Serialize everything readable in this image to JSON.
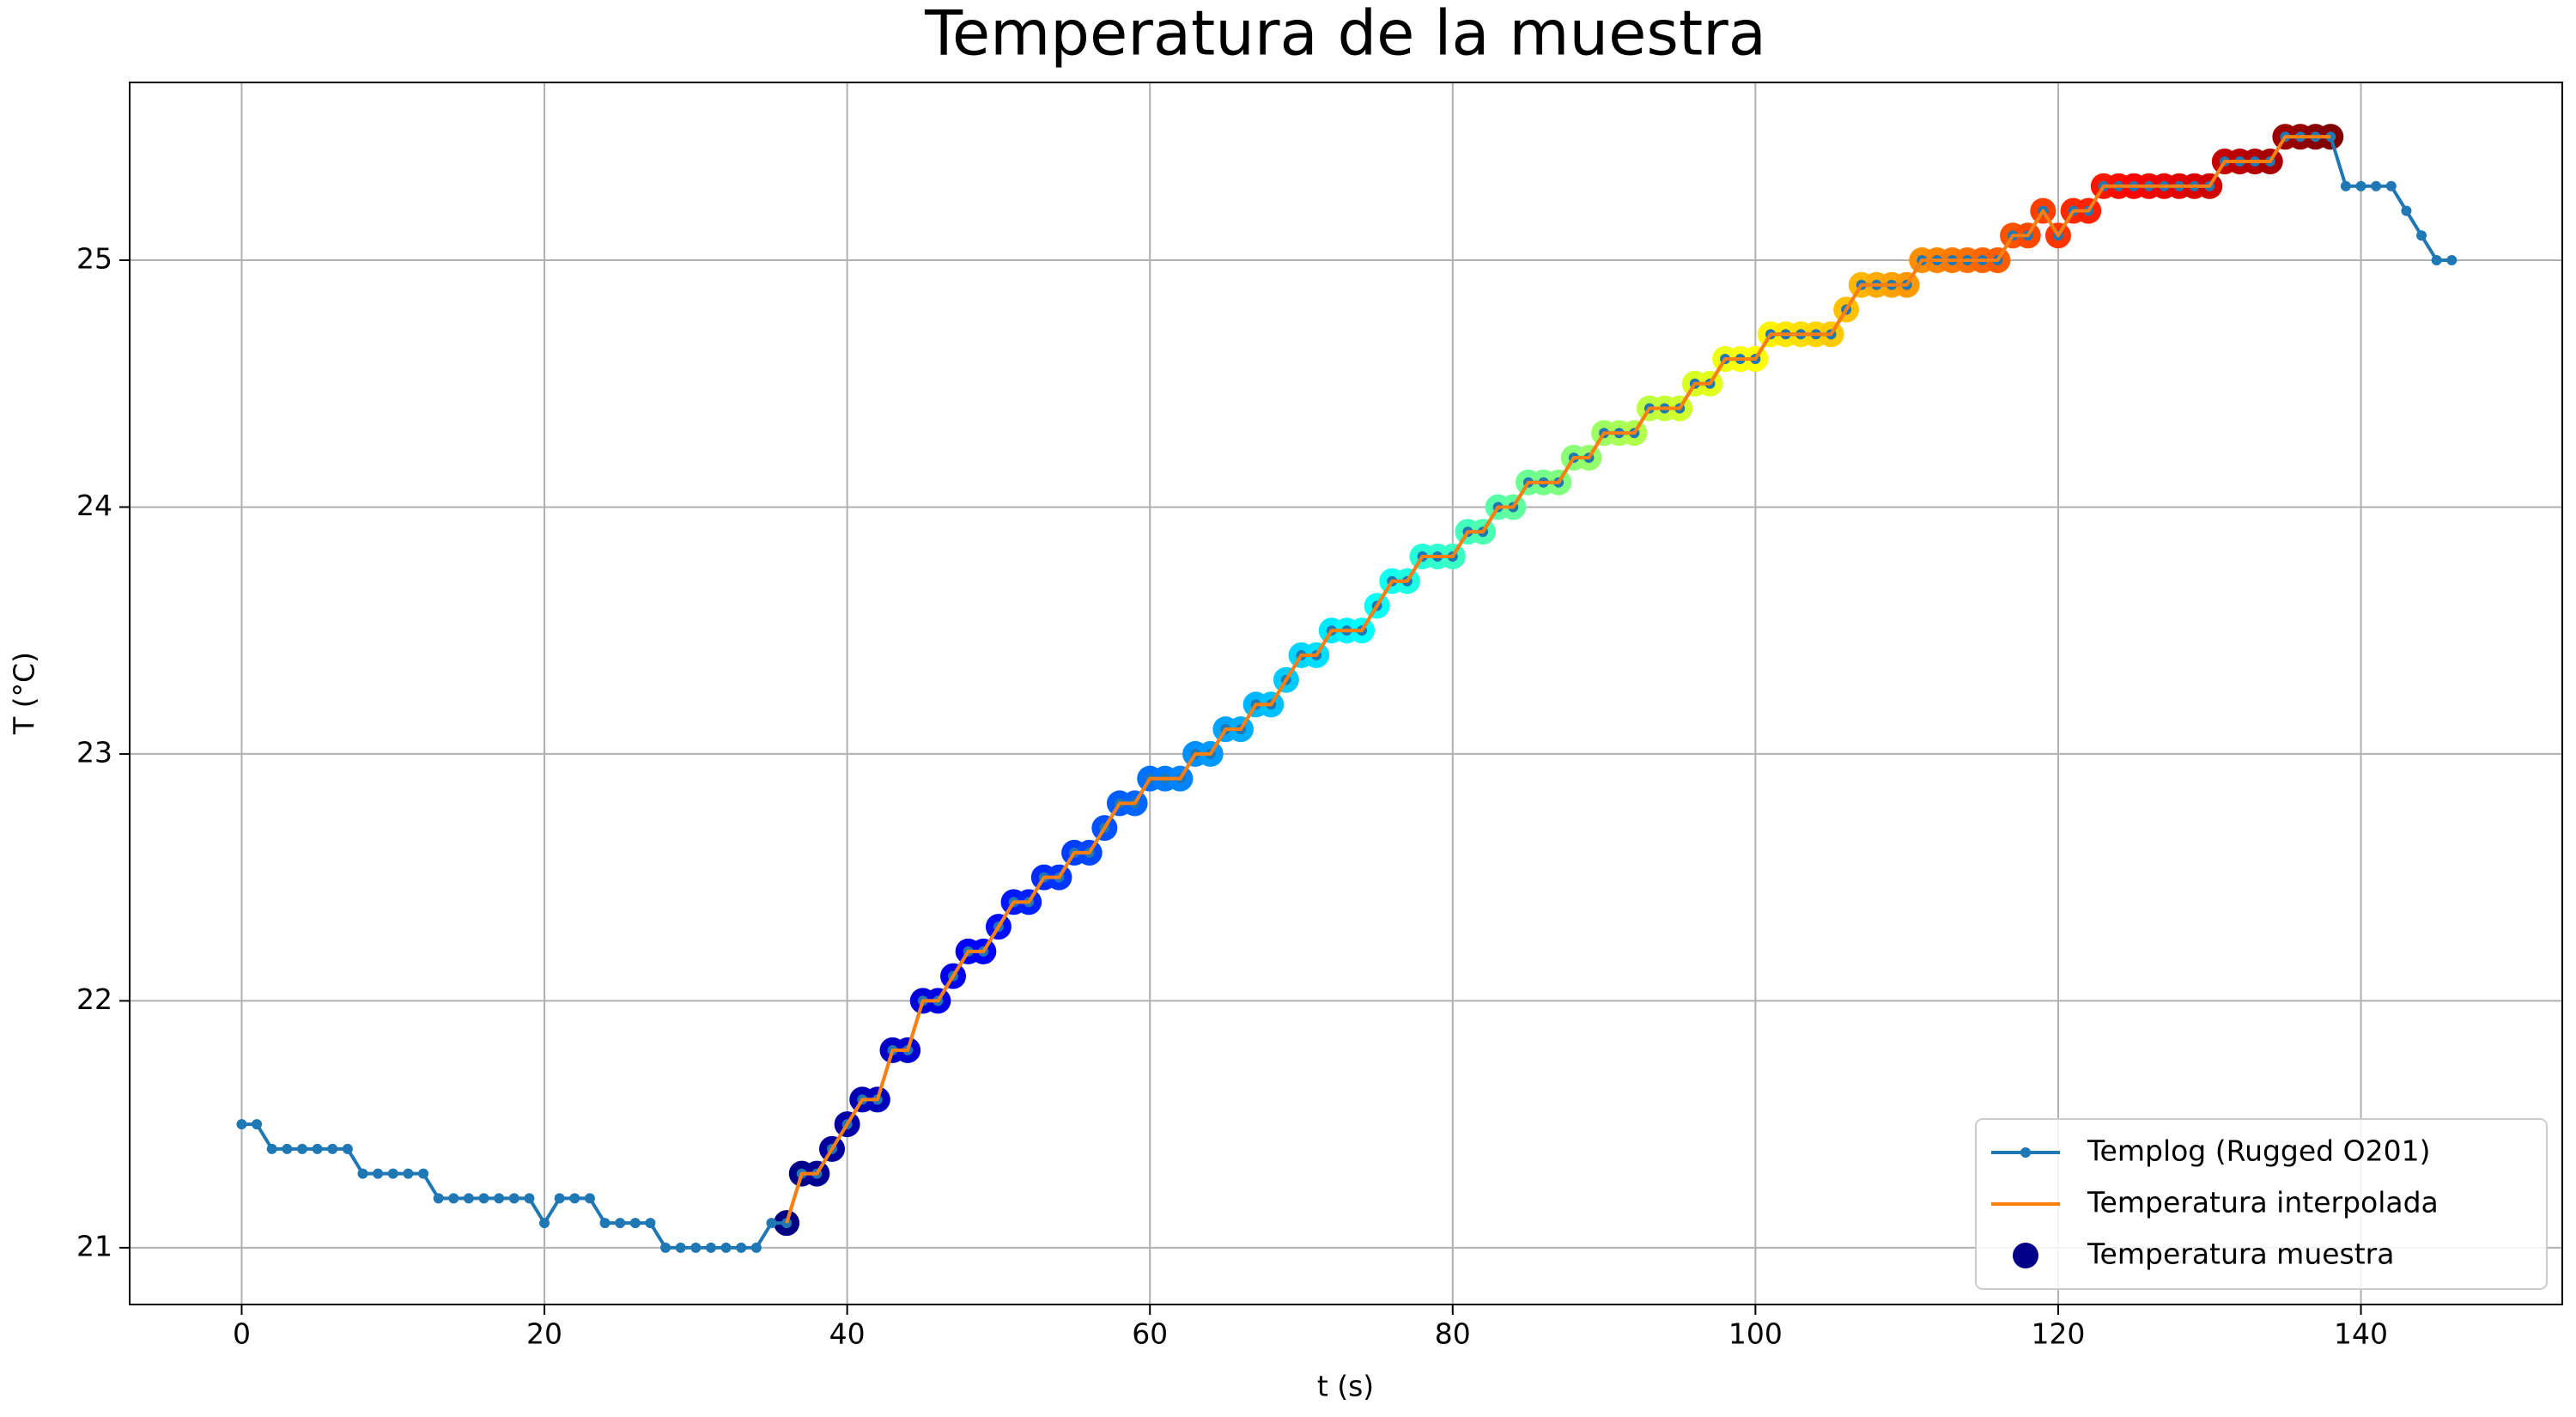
{
  "chart_data": {
    "type": "line",
    "title": "Temperatura de la muestra",
    "x_label": "t (s)",
    "y_label": "T (°C)",
    "xlim": [
      -7.4,
      153.3
    ],
    "ylim": [
      20.77,
      25.72
    ],
    "xticks": [
      0,
      20,
      40,
      60,
      80,
      100,
      120,
      140
    ],
    "yticks": [
      21,
      22,
      23,
      24,
      25
    ],
    "grid": true,
    "legend": "lower right",
    "series": [
      {
        "name": "Templog (Rugged O201)",
        "type": "line",
        "color": "#1f77b4",
        "marker": true,
        "x": [
          0,
          1,
          2,
          3,
          4,
          5,
          6,
          7,
          8,
          9,
          10,
          11,
          12,
          13,
          14,
          15,
          16,
          17,
          18,
          19,
          20,
          21,
          22,
          23,
          24,
          25,
          26,
          27,
          28,
          29,
          30,
          31,
          32,
          33,
          34,
          35,
          36,
          37,
          38,
          39,
          40,
          41,
          42,
          43,
          44,
          45,
          46,
          47,
          48,
          49,
          50,
          51,
          52,
          53,
          54,
          55,
          56,
          57,
          58,
          59,
          60,
          61,
          62,
          63,
          64,
          65,
          66,
          67,
          68,
          69,
          70,
          71,
          72,
          73,
          74,
          75,
          76,
          77,
          78,
          79,
          80,
          81,
          82,
          83,
          84,
          85,
          86,
          87,
          88,
          89,
          90,
          91,
          92,
          93,
          94,
          95,
          96,
          97,
          98,
          99,
          100,
          101,
          102,
          103,
          104,
          105,
          106,
          107,
          108,
          109,
          110,
          111,
          112,
          113,
          114,
          115,
          116,
          117,
          118,
          119,
          120,
          121,
          122,
          123,
          124,
          125,
          126,
          127,
          128,
          129,
          130,
          131,
          132,
          133,
          134,
          135,
          136,
          137,
          138,
          139,
          140,
          141,
          142,
          143,
          144,
          145,
          146
        ],
        "values": [
          21.5,
          21.5,
          21.4,
          21.4,
          21.4,
          21.4,
          21.4,
          21.4,
          21.3,
          21.3,
          21.3,
          21.3,
          21.3,
          21.2,
          21.2,
          21.2,
          21.2,
          21.2,
          21.2,
          21.2,
          21.1,
          21.2,
          21.2,
          21.2,
          21.1,
          21.1,
          21.1,
          21.1,
          21.0,
          21.0,
          21.0,
          21.0,
          21.0,
          21.0,
          21.0,
          21.1,
          21.1,
          21.3,
          21.3,
          21.4,
          21.5,
          21.6,
          21.6,
          21.8,
          21.8,
          22.0,
          22.0,
          22.1,
          22.2,
          22.2,
          22.3,
          22.4,
          22.4,
          22.5,
          22.5,
          22.6,
          22.6,
          22.7,
          22.8,
          22.8,
          22.9,
          22.9,
          22.9,
          23.0,
          23.0,
          23.1,
          23.1,
          23.2,
          23.2,
          23.3,
          23.4,
          23.4,
          23.5,
          23.5,
          23.5,
          23.6,
          23.7,
          23.7,
          23.8,
          23.8,
          23.8,
          23.9,
          23.9,
          24.0,
          24.0,
          24.1,
          24.1,
          24.1,
          24.2,
          24.2,
          24.3,
          24.3,
          24.3,
          24.4,
          24.4,
          24.4,
          24.5,
          24.5,
          24.6,
          24.6,
          24.6,
          24.7,
          24.7,
          24.7,
          24.7,
          24.7,
          24.8,
          24.9,
          24.9,
          24.9,
          24.9,
          25.0,
          25.0,
          25.0,
          25.0,
          25.0,
          25.0,
          25.1,
          25.1,
          25.2,
          25.1,
          25.2,
          25.2,
          25.3,
          25.3,
          25.3,
          25.3,
          25.3,
          25.3,
          25.3,
          25.3,
          25.4,
          25.4,
          25.4,
          25.4,
          25.5,
          25.5,
          25.5,
          25.5,
          25.3,
          25.3,
          25.3,
          25.3,
          25.2,
          25.1,
          25.0,
          25.0
        ]
      },
      {
        "name": "Temperatura interpolada",
        "type": "line",
        "color": "#ff7f0e",
        "marker": false,
        "x": [
          36,
          37,
          38,
          39,
          40,
          41,
          42,
          43,
          44,
          45,
          46,
          47,
          48,
          49,
          50,
          51,
          52,
          53,
          54,
          55,
          56,
          57,
          58,
          59,
          60,
          61,
          62,
          63,
          64,
          65,
          66,
          67,
          68,
          69,
          70,
          71,
          72,
          73,
          74,
          75,
          76,
          77,
          78,
          79,
          80,
          81,
          82,
          83,
          84,
          85,
          86,
          87,
          88,
          89,
          90,
          91,
          92,
          93,
          94,
          95,
          96,
          97,
          98,
          99,
          100,
          101,
          102,
          103,
          104,
          105,
          106,
          107,
          108,
          109,
          110,
          111,
          112,
          113,
          114,
          115,
          116,
          117,
          118,
          119,
          120,
          121,
          122,
          123,
          124,
          125,
          126,
          127,
          128,
          129,
          130,
          131,
          132,
          133,
          134,
          135,
          136,
          137,
          138
        ],
        "values": [
          21.1,
          21.3,
          21.3,
          21.4,
          21.5,
          21.6,
          21.6,
          21.8,
          21.8,
          22.0,
          22.0,
          22.1,
          22.2,
          22.2,
          22.3,
          22.4,
          22.4,
          22.5,
          22.5,
          22.6,
          22.6,
          22.7,
          22.8,
          22.8,
          22.9,
          22.9,
          22.9,
          23.0,
          23.0,
          23.1,
          23.1,
          23.2,
          23.2,
          23.3,
          23.4,
          23.4,
          23.5,
          23.5,
          23.5,
          23.6,
          23.7,
          23.7,
          23.8,
          23.8,
          23.8,
          23.9,
          23.9,
          24.0,
          24.0,
          24.1,
          24.1,
          24.1,
          24.2,
          24.2,
          24.3,
          24.3,
          24.3,
          24.4,
          24.4,
          24.4,
          24.5,
          24.5,
          24.6,
          24.6,
          24.6,
          24.7,
          24.7,
          24.7,
          24.7,
          24.7,
          24.8,
          24.9,
          24.9,
          24.9,
          24.9,
          25.0,
          25.0,
          25.0,
          25.0,
          25.0,
          25.0,
          25.1,
          25.1,
          25.2,
          25.1,
          25.2,
          25.2,
          25.3,
          25.3,
          25.3,
          25.3,
          25.3,
          25.3,
          25.3,
          25.3,
          25.4,
          25.4,
          25.4,
          25.4,
          25.5,
          25.5,
          25.5,
          25.5
        ]
      },
      {
        "name": "Temperatura muestra",
        "type": "scatter",
        "color": "#00008b",
        "colormap": "jet",
        "x": [
          36,
          37,
          38,
          39,
          40,
          41,
          42,
          43,
          44,
          45,
          46,
          47,
          48,
          49,
          50,
          51,
          52,
          53,
          54,
          55,
          56,
          57,
          58,
          59,
          60,
          61,
          62,
          63,
          64,
          65,
          66,
          67,
          68,
          69,
          70,
          71,
          72,
          73,
          74,
          75,
          76,
          77,
          78,
          79,
          80,
          81,
          82,
          83,
          84,
          85,
          86,
          87,
          88,
          89,
          90,
          91,
          92,
          93,
          94,
          95,
          96,
          97,
          98,
          99,
          100,
          101,
          102,
          103,
          104,
          105,
          106,
          107,
          108,
          109,
          110,
          111,
          112,
          113,
          114,
          115,
          116,
          117,
          118,
          119,
          120,
          121,
          122,
          123,
          124,
          125,
          126,
          127,
          128,
          129,
          130,
          131,
          132,
          133,
          134,
          135,
          136,
          137,
          138
        ],
        "values": [
          21.1,
          21.3,
          21.3,
          21.4,
          21.5,
          21.6,
          21.6,
          21.8,
          21.8,
          22.0,
          22.0,
          22.1,
          22.2,
          22.2,
          22.3,
          22.4,
          22.4,
          22.5,
          22.5,
          22.6,
          22.6,
          22.7,
          22.8,
          22.8,
          22.9,
          22.9,
          22.9,
          23.0,
          23.0,
          23.1,
          23.1,
          23.2,
          23.2,
          23.3,
          23.4,
          23.4,
          23.5,
          23.5,
          23.5,
          23.6,
          23.7,
          23.7,
          23.8,
          23.8,
          23.8,
          23.9,
          23.9,
          24.0,
          24.0,
          24.1,
          24.1,
          24.1,
          24.2,
          24.2,
          24.3,
          24.3,
          24.3,
          24.4,
          24.4,
          24.4,
          24.5,
          24.5,
          24.6,
          24.6,
          24.6,
          24.7,
          24.7,
          24.7,
          24.7,
          24.7,
          24.8,
          24.9,
          24.9,
          24.9,
          24.9,
          25.0,
          25.0,
          25.0,
          25.0,
          25.0,
          25.0,
          25.1,
          25.1,
          25.2,
          25.1,
          25.2,
          25.2,
          25.3,
          25.3,
          25.3,
          25.3,
          25.3,
          25.3,
          25.3,
          25.3,
          25.4,
          25.4,
          25.4,
          25.4,
          25.5,
          25.5,
          25.5,
          25.5
        ]
      }
    ]
  }
}
